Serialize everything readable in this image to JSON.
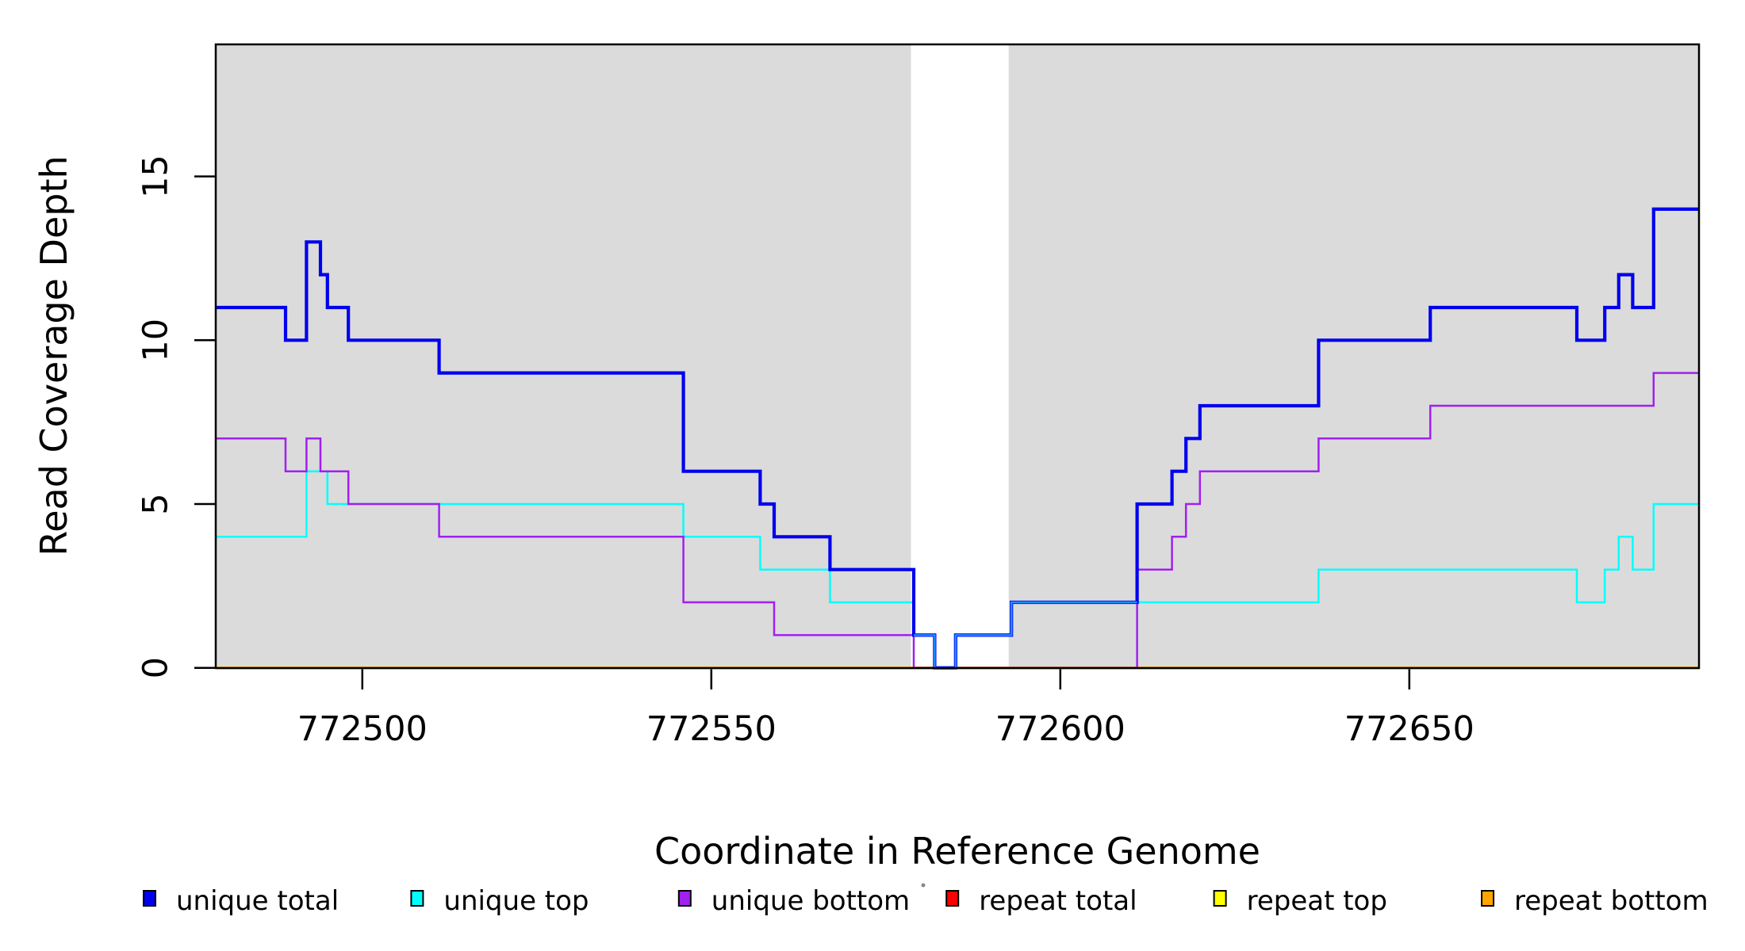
{
  "chart_data": {
    "type": "step-line",
    "title": "",
    "xlabel": "Coordinate in Reference Genome",
    "ylabel": "Read Coverage Depth",
    "xlim": [
      772479,
      772691.5
    ],
    "ylim": [
      0,
      19.03
    ],
    "x_ticks": [
      772500,
      772550,
      772600,
      772650
    ],
    "y_ticks": [
      0,
      5,
      10,
      15
    ],
    "grid": false,
    "legend_position": "bottom",
    "shaded_regions": {
      "color": "#DBDBDB",
      "bands": [
        [
          772479,
          772578.6
        ],
        [
          772592.6,
          772691.5
        ]
      ]
    },
    "series": [
      {
        "name": "repeat total",
        "color": "#FF0000",
        "line_width": 3,
        "x_end": 772691.5,
        "steps": [
          [
            772479,
            0
          ]
        ]
      },
      {
        "name": "repeat top",
        "color": "#FFFF00",
        "line_width": 3,
        "x_end": 772691.5,
        "steps": [
          [
            772479,
            0
          ]
        ]
      },
      {
        "name": "repeat bottom",
        "color": "#FFA500",
        "line_width": 3,
        "x_end": 772691.5,
        "steps": [
          [
            772479,
            0
          ]
        ]
      },
      {
        "name": "unique top",
        "color": "#00FFFF",
        "line_width": 2.5,
        "x_end": 772691.5,
        "steps": [
          [
            772479,
            4
          ],
          [
            772492,
            6
          ],
          [
            772495,
            5
          ],
          [
            772546,
            4
          ],
          [
            772557,
            3
          ],
          [
            772567,
            2
          ],
          [
            772579,
            1
          ],
          [
            772582,
            0
          ],
          [
            772585,
            1
          ],
          [
            772593,
            2
          ],
          [
            772637,
            3
          ],
          [
            772674,
            2
          ],
          [
            772678,
            3
          ],
          [
            772680,
            4
          ],
          [
            772682,
            3
          ],
          [
            772685,
            5
          ]
        ]
      },
      {
        "name": "unique bottom",
        "color": "#A020F0",
        "line_width": 2.5,
        "x_end": 772691.5,
        "steps": [
          [
            772479,
            7
          ],
          [
            772489,
            6
          ],
          [
            772492,
            7
          ],
          [
            772494,
            6
          ],
          [
            772498,
            5
          ],
          [
            772511,
            4
          ],
          [
            772546,
            2
          ],
          [
            772559,
            1
          ],
          [
            772579,
            0
          ],
          [
            772611,
            3
          ],
          [
            772616,
            4
          ],
          [
            772618,
            5
          ],
          [
            772620,
            6
          ],
          [
            772637,
            7
          ],
          [
            772653,
            8
          ],
          [
            772685,
            9
          ]
        ]
      },
      {
        "name": "unique total",
        "color": "#0000EE",
        "line_width": 4.2,
        "x_end": 772691.5,
        "steps": [
          [
            772479,
            11
          ],
          [
            772489,
            10
          ],
          [
            772492,
            13
          ],
          [
            772494,
            12
          ],
          [
            772495,
            11
          ],
          [
            772498,
            10
          ],
          [
            772511,
            9
          ],
          [
            772546,
            6
          ],
          [
            772557,
            5
          ],
          [
            772559,
            4
          ],
          [
            772567,
            3
          ],
          [
            772579,
            1
          ],
          [
            772582,
            0
          ],
          [
            772585,
            1
          ],
          [
            772593,
            2
          ],
          [
            772611,
            5
          ],
          [
            772616,
            6
          ],
          [
            772618,
            7
          ],
          [
            772620,
            8
          ],
          [
            772637,
            10
          ],
          [
            772653,
            11
          ],
          [
            772674,
            10
          ],
          [
            772678,
            11
          ],
          [
            772680,
            12
          ],
          [
            772682,
            11
          ],
          [
            772685,
            14
          ]
        ]
      }
    ],
    "overlay_segment": {
      "note": "bright blue core where unique total overlaps unique top in the unshaded gap",
      "color": "#1E90FF",
      "line_width": 2.4,
      "x_end": 772611,
      "steps": [
        [
          772579,
          1
        ],
        [
          772582,
          0
        ],
        [
          772585,
          1
        ],
        [
          772593,
          2
        ]
      ]
    },
    "legend": [
      {
        "label": "unique total",
        "color": "#0000EE"
      },
      {
        "label": "unique top",
        "color": "#00FFFF"
      },
      {
        "label": "unique bottom",
        "color": "#A020F0"
      },
      {
        "label": "repeat total",
        "color": "#FF0000"
      },
      {
        "label": "repeat top",
        "color": "#FFFF00"
      },
      {
        "label": "repeat bottom",
        "color": "#FFA500"
      }
    ]
  }
}
